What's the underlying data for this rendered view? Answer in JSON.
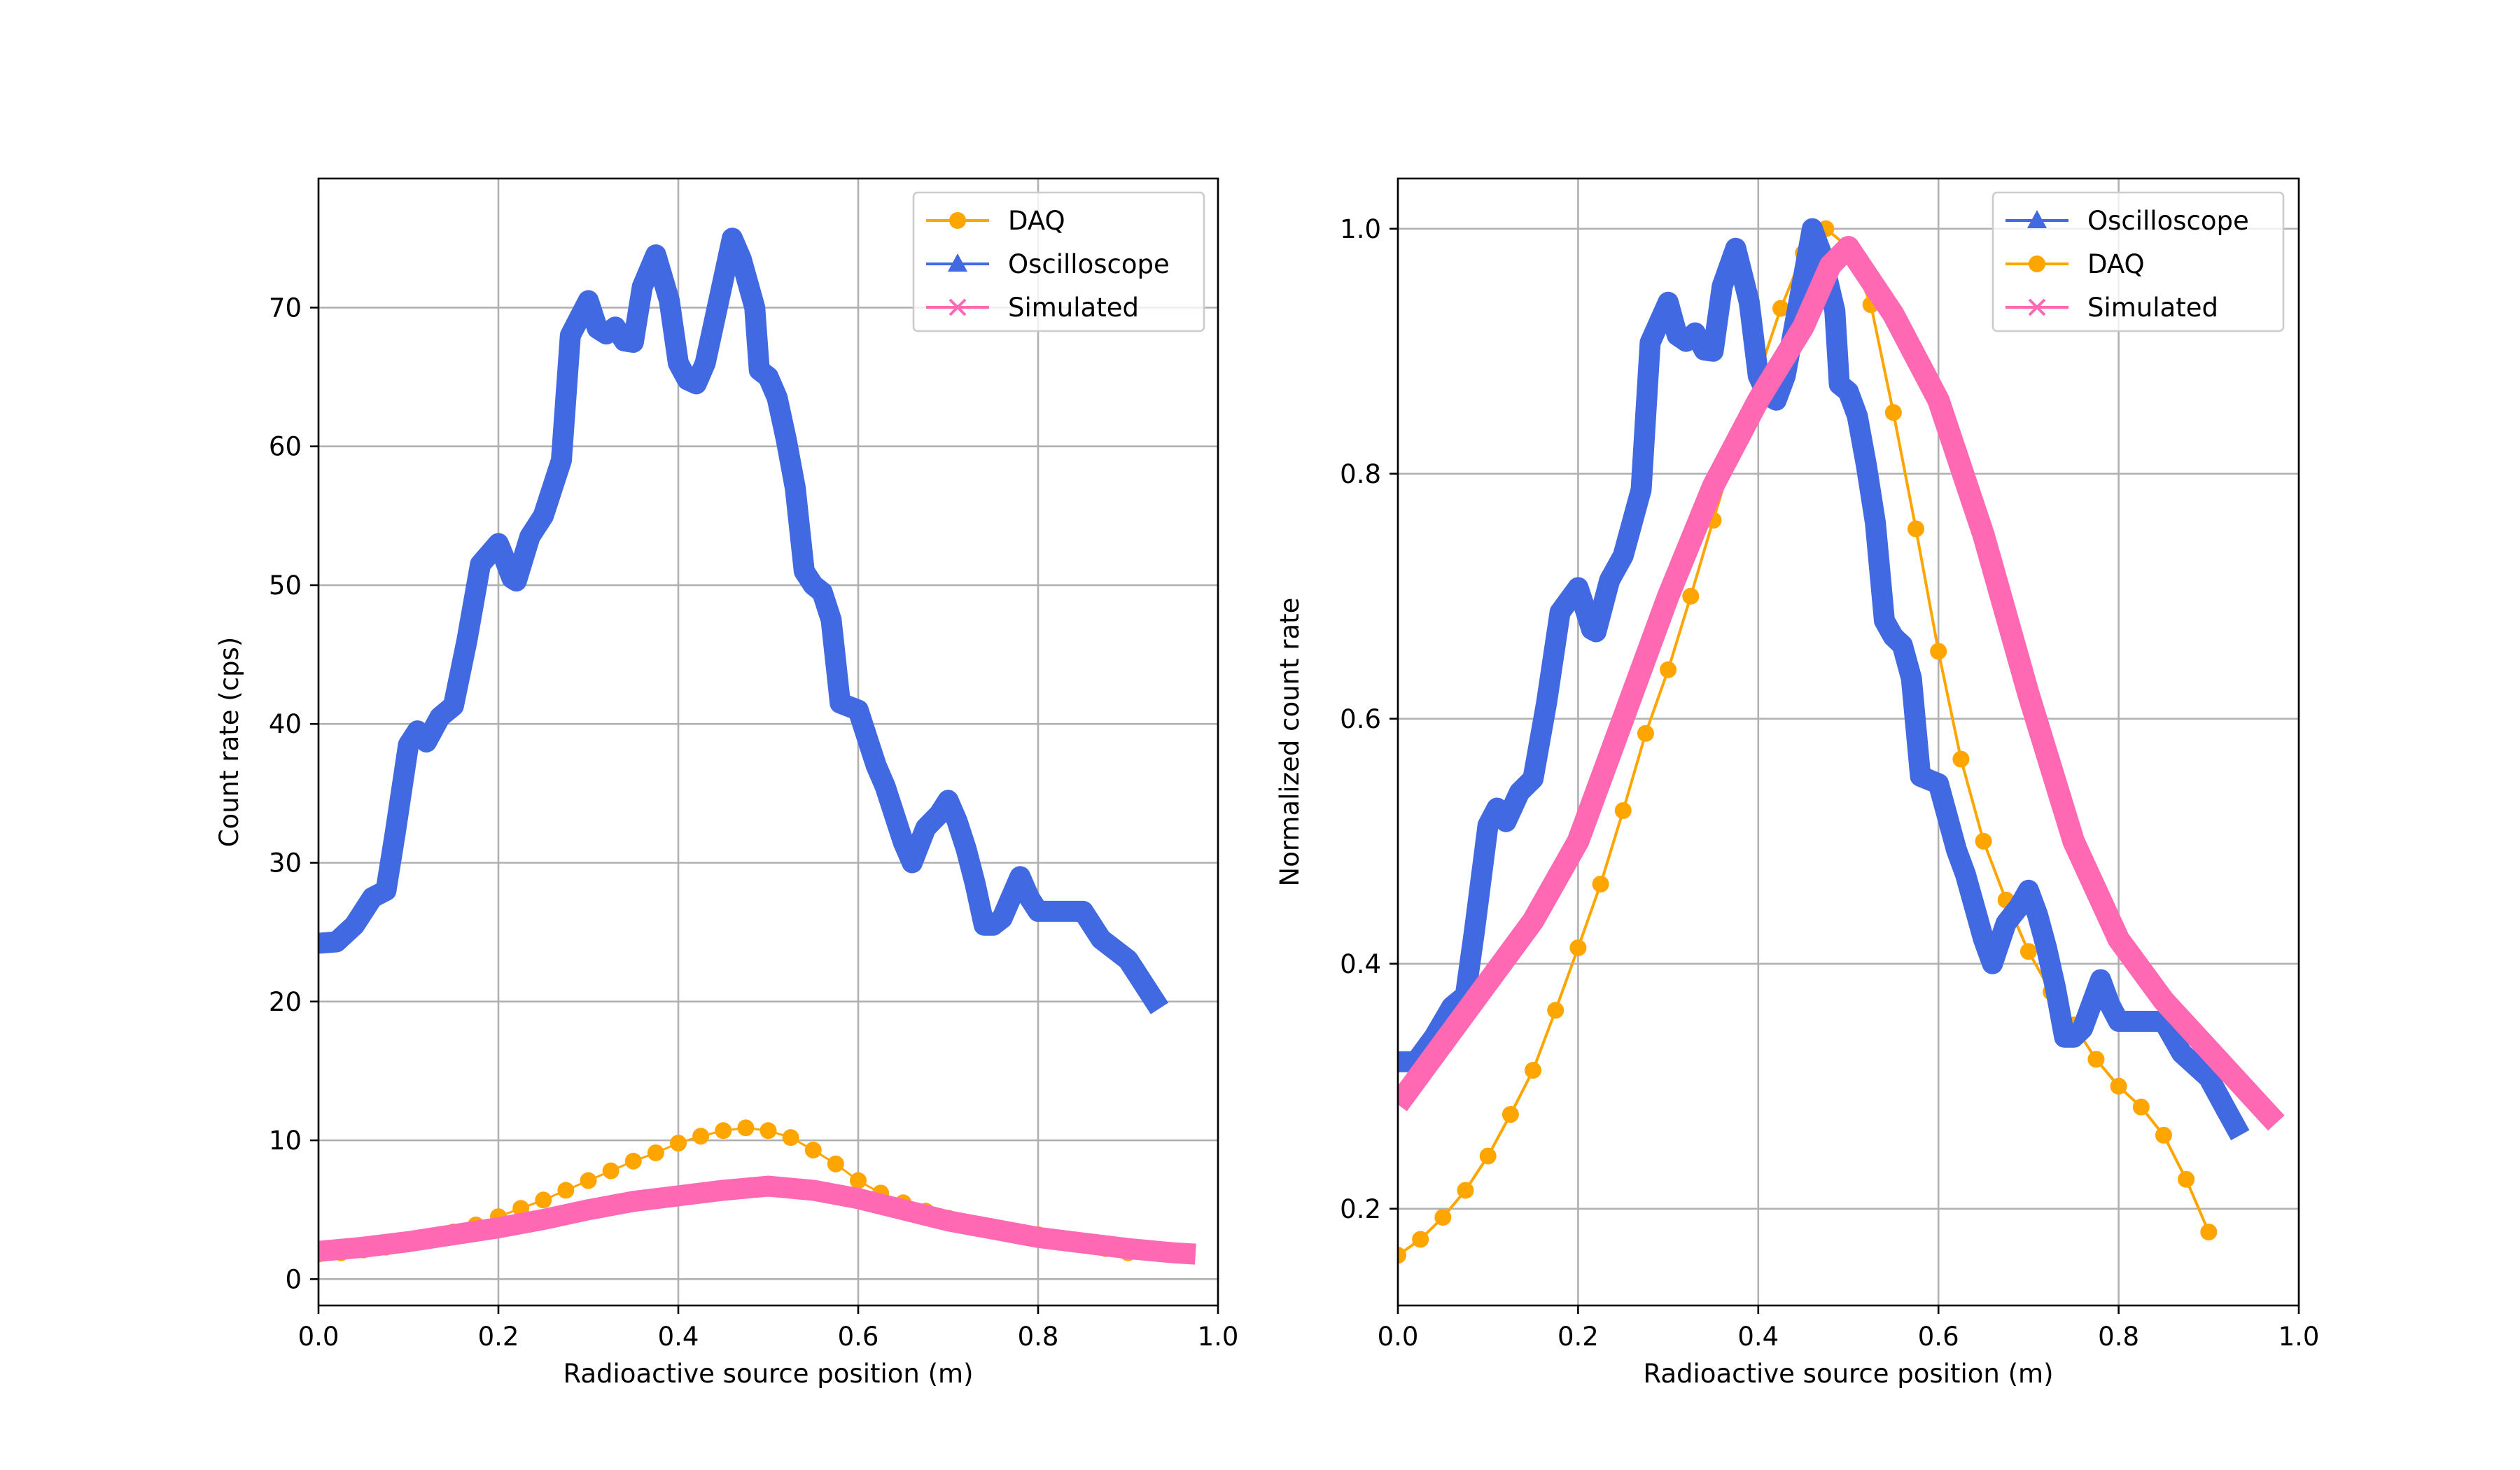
{
  "chart_data": [
    {
      "type": "line",
      "xlabel": "Radioactive source position (m)",
      "ylabel": "Count rate (cps)",
      "xlim": [
        0.0,
        1.0
      ],
      "ylim": [
        -1.9,
        79.3
      ],
      "xticks": [
        "0.0",
        "0.2",
        "0.4",
        "0.6",
        "0.8",
        "1.0"
      ],
      "yticks": [
        "0",
        "10",
        "20",
        "30",
        "40",
        "50",
        "60",
        "70"
      ],
      "grid": true,
      "legend_position": "upper right",
      "series": [
        {
          "name": "DAQ",
          "color": "#FFA500",
          "marker": "circle",
          "x": [
            0.0,
            0.025,
            0.05,
            0.075,
            0.1,
            0.125,
            0.15,
            0.175,
            0.2,
            0.225,
            0.25,
            0.275,
            0.3,
            0.325,
            0.35,
            0.375,
            0.4,
            0.425,
            0.45,
            0.475,
            0.5,
            0.525,
            0.55,
            0.575,
            0.6,
            0.625,
            0.65,
            0.675,
            0.7,
            0.725,
            0.75,
            0.775,
            0.8,
            0.825,
            0.85,
            0.875,
            0.9
          ],
          "y": [
            1.8,
            1.9,
            2.1,
            2.3,
            2.7,
            3.0,
            3.4,
            3.9,
            4.5,
            5.1,
            5.7,
            6.4,
            7.1,
            7.8,
            8.5,
            9.1,
            9.8,
            10.3,
            10.7,
            10.9,
            10.7,
            10.2,
            9.3,
            8.3,
            7.1,
            6.2,
            5.5,
            4.9,
            4.4,
            4.0,
            3.7,
            3.4,
            3.2,
            2.9,
            2.6,
            2.2,
            1.9
          ]
        },
        {
          "name": "Oscilloscope",
          "color": "#4169E1",
          "marker": "triangle",
          "x": [
            0.0,
            0.02,
            0.04,
            0.06,
            0.075,
            0.085,
            0.1,
            0.11,
            0.12,
            0.135,
            0.15,
            0.165,
            0.18,
            0.2,
            0.205,
            0.215,
            0.22,
            0.235,
            0.25,
            0.27,
            0.28,
            0.3,
            0.31,
            0.32,
            0.33,
            0.34,
            0.35,
            0.36,
            0.375,
            0.39,
            0.4,
            0.41,
            0.42,
            0.43,
            0.45,
            0.46,
            0.47,
            0.485,
            0.49,
            0.5,
            0.51,
            0.52,
            0.53,
            0.54,
            0.55,
            0.56,
            0.57,
            0.58,
            0.6,
            0.61,
            0.62,
            0.63,
            0.65,
            0.66,
            0.675,
            0.69,
            0.7,
            0.71,
            0.72,
            0.73,
            0.74,
            0.75,
            0.76,
            0.78,
            0.79,
            0.8,
            0.81,
            0.82,
            0.83,
            0.84,
            0.85,
            0.86,
            0.87,
            0.9,
            0.92,
            0.935
          ],
          "y": [
            24.2,
            24.3,
            25.5,
            27.5,
            28.0,
            32.0,
            38.5,
            39.5,
            38.7,
            40.5,
            41.3,
            46.0,
            51.5,
            53.0,
            52.2,
            50.5,
            50.3,
            53.5,
            55.0,
            59.0,
            68.0,
            70.5,
            68.5,
            68.1,
            68.6,
            67.6,
            67.5,
            71.5,
            73.8,
            70.5,
            66.0,
            64.8,
            64.5,
            66.0,
            72.0,
            75.0,
            73.5,
            70.0,
            65.5,
            65.0,
            63.5,
            60.5,
            57.0,
            51.0,
            50.0,
            49.5,
            47.5,
            41.5,
            41.0,
            39.0,
            37.0,
            35.5,
            31.5,
            30.0,
            32.5,
            33.5,
            34.5,
            33.0,
            31.0,
            28.5,
            25.5,
            25.5,
            26.0,
            29.0,
            27.5,
            26.5,
            26.5,
            26.5,
            26.5,
            26.5,
            26.5,
            25.5,
            24.5,
            23.0,
            21.0,
            19.5
          ]
        },
        {
          "name": "Simulated",
          "color": "#FF69B4",
          "marker": "x",
          "x": [
            0.0,
            0.05,
            0.1,
            0.15,
            0.2,
            0.25,
            0.3,
            0.35,
            0.4,
            0.45,
            0.5,
            0.55,
            0.6,
            0.65,
            0.7,
            0.75,
            0.8,
            0.85,
            0.9,
            0.95,
            0.975
          ],
          "y": [
            2.0,
            2.3,
            2.7,
            3.2,
            3.7,
            4.3,
            5.0,
            5.6,
            6.0,
            6.4,
            6.7,
            6.4,
            5.8,
            5.0,
            4.2,
            3.6,
            3.0,
            2.6,
            2.2,
            1.9,
            1.8
          ]
        }
      ]
    },
    {
      "type": "line",
      "xlabel": "Radioactive source position (m)",
      "ylabel": "Normalized count rate",
      "xlim": [
        0.0,
        1.0
      ],
      "ylim": [
        0.121,
        1.041
      ],
      "xticks": [
        "0.0",
        "0.2",
        "0.4",
        "0.6",
        "0.8",
        "1.0"
      ],
      "yticks": [
        "0.2",
        "0.4",
        "0.6",
        "0.8",
        "1.0"
      ],
      "grid": true,
      "legend_position": "upper right",
      "series": [
        {
          "name": "Oscilloscope",
          "color": "#4169E1",
          "marker": "triangle",
          "x": [
            0.0,
            0.02,
            0.04,
            0.06,
            0.075,
            0.085,
            0.1,
            0.11,
            0.12,
            0.135,
            0.15,
            0.165,
            0.18,
            0.2,
            0.205,
            0.215,
            0.22,
            0.235,
            0.25,
            0.27,
            0.28,
            0.3,
            0.31,
            0.32,
            0.33,
            0.34,
            0.35,
            0.36,
            0.375,
            0.39,
            0.4,
            0.41,
            0.42,
            0.43,
            0.45,
            0.46,
            0.47,
            0.485,
            0.49,
            0.5,
            0.51,
            0.52,
            0.53,
            0.54,
            0.55,
            0.56,
            0.57,
            0.58,
            0.6,
            0.61,
            0.62,
            0.63,
            0.65,
            0.66,
            0.675,
            0.69,
            0.7,
            0.71,
            0.72,
            0.73,
            0.74,
            0.75,
            0.76,
            0.78,
            0.79,
            0.8,
            0.81,
            0.82,
            0.83,
            0.84,
            0.85,
            0.86,
            0.87,
            0.9,
            0.92,
            0.935
          ],
          "y": [
            0.32,
            0.32,
            0.34,
            0.365,
            0.374,
            0.427,
            0.513,
            0.527,
            0.516,
            0.54,
            0.551,
            0.613,
            0.687,
            0.707,
            0.696,
            0.673,
            0.671,
            0.713,
            0.733,
            0.787,
            0.907,
            0.94,
            0.913,
            0.908,
            0.915,
            0.901,
            0.9,
            0.953,
            0.984,
            0.94,
            0.88,
            0.864,
            0.86,
            0.88,
            0.96,
            1.0,
            0.98,
            0.933,
            0.873,
            0.867,
            0.847,
            0.807,
            0.76,
            0.68,
            0.667,
            0.66,
            0.633,
            0.553,
            0.547,
            0.52,
            0.493,
            0.473,
            0.42,
            0.4,
            0.433,
            0.447,
            0.46,
            0.44,
            0.413,
            0.38,
            0.34,
            0.34,
            0.347,
            0.387,
            0.367,
            0.353,
            0.353,
            0.353,
            0.353,
            0.353,
            0.353,
            0.34,
            0.327,
            0.307,
            0.28,
            0.26
          ]
        },
        {
          "name": "DAQ",
          "color": "#FFA500",
          "marker": "circle",
          "x": [
            0.0,
            0.025,
            0.05,
            0.075,
            0.1,
            0.125,
            0.15,
            0.175,
            0.2,
            0.225,
            0.25,
            0.275,
            0.3,
            0.325,
            0.35,
            0.375,
            0.4,
            0.425,
            0.45,
            0.475,
            0.5,
            0.525,
            0.55,
            0.575,
            0.6,
            0.625,
            0.65,
            0.675,
            0.7,
            0.725,
            0.75,
            0.775,
            0.8,
            0.825,
            0.85,
            0.875,
            0.9
          ],
          "y": [
            0.162,
            0.175,
            0.193,
            0.215,
            0.243,
            0.277,
            0.313,
            0.362,
            0.413,
            0.465,
            0.525,
            0.588,
            0.64,
            0.7,
            0.762,
            0.823,
            0.88,
            0.935,
            0.98,
            1.0,
            0.985,
            0.938,
            0.85,
            0.755,
            0.655,
            0.567,
            0.5,
            0.452,
            0.41,
            0.377,
            0.35,
            0.322,
            0.3,
            0.283,
            0.26,
            0.224,
            0.181
          ]
        },
        {
          "name": "Simulated",
          "color": "#FF69B4",
          "marker": "x",
          "x": [
            0.0,
            0.05,
            0.1,
            0.15,
            0.2,
            0.25,
            0.3,
            0.35,
            0.4,
            0.45,
            0.48,
            0.5,
            0.55,
            0.6,
            0.65,
            0.7,
            0.75,
            0.8,
            0.85,
            0.9,
            0.95,
            0.975
          ],
          "y": [
            0.285,
            0.335,
            0.385,
            0.435,
            0.5,
            0.6,
            0.7,
            0.79,
            0.86,
            0.92,
            0.97,
            0.985,
            0.93,
            0.86,
            0.75,
            0.62,
            0.5,
            0.42,
            0.37,
            0.33,
            0.29,
            0.27
          ]
        }
      ]
    }
  ]
}
